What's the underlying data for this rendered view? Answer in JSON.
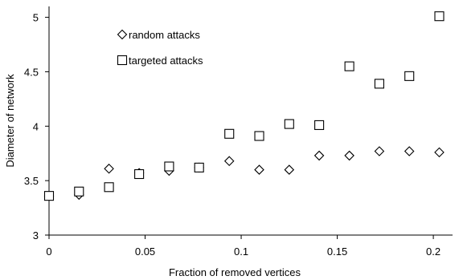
{
  "chart_data": {
    "type": "scatter",
    "title": "",
    "xlabel": "Fraction of removed vertices",
    "ylabel": "Diameter of network",
    "xlim": [
      0,
      0.21
    ],
    "ylim": [
      3,
      5.1
    ],
    "x_ticks": [
      0,
      0.05,
      0.1,
      0.15,
      0.2
    ],
    "x_tick_labels": [
      "0",
      "0.05",
      "0.1",
      "0.15",
      "0.2"
    ],
    "y_ticks": [
      3,
      3.5,
      4,
      4.5,
      5
    ],
    "y_tick_labels": [
      "3",
      "3.5",
      "4",
      "4.5",
      "5"
    ],
    "grid": false,
    "legend_position": "top-left",
    "series": [
      {
        "name": "random attacks",
        "marker": "diamond",
        "color": "#000000",
        "x": [
          0,
          0.0156,
          0.0312,
          0.0469,
          0.0625,
          0.0781,
          0.0938,
          0.1094,
          0.125,
          0.1406,
          0.1563,
          0.1719,
          0.1875,
          0.2031
        ],
        "y": [
          3.36,
          3.37,
          3.61,
          3.57,
          3.59,
          3.62,
          3.68,
          3.6,
          3.6,
          3.73,
          3.73,
          3.77,
          3.77,
          3.76
        ]
      },
      {
        "name": "targeted attacks",
        "marker": "square",
        "color": "#000000",
        "x": [
          0,
          0.0156,
          0.0312,
          0.0469,
          0.0625,
          0.0781,
          0.0938,
          0.1094,
          0.125,
          0.1406,
          0.1563,
          0.1719,
          0.1875,
          0.2031
        ],
        "y": [
          3.36,
          3.4,
          3.44,
          3.56,
          3.63,
          3.62,
          3.93,
          3.91,
          4.02,
          4.01,
          4.55,
          4.39,
          4.46,
          5.01
        ]
      }
    ]
  }
}
